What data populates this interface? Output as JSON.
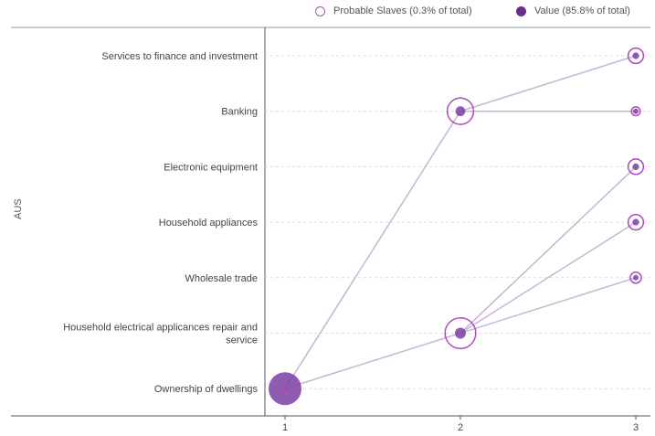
{
  "legend": {
    "probable_slaves": "Probable Slaves (0.3% of total)",
    "value": "Value (85.8% of total)"
  },
  "colors": {
    "value_fill": "#7b3fa3",
    "slaves_ring": "#b04ac0",
    "link_line": "#c9b3d6",
    "grid": "#dcdcdc",
    "axis": "#555555"
  },
  "chart_data": {
    "type": "scatter",
    "ylabel": "AUS",
    "x_ticks": [
      1,
      2,
      3
    ],
    "categories": [
      "Services to finance and investment",
      "Banking",
      "Electronic equipment",
      "Household appliances",
      "Wholesale trade",
      "Household electrical applicances repair and service",
      "Ownership of dwellings"
    ],
    "nodes": [
      {
        "x": 1,
        "category": "Ownership of dwellings",
        "value_size": 3.0,
        "slaves_size": 0.6
      },
      {
        "x": 2,
        "category": "Banking",
        "value_size": 0.9,
        "slaves_size": 2.4
      },
      {
        "x": 2,
        "category": "Household electrical applicances repair and service",
        "value_size": 1.0,
        "slaves_size": 2.8
      },
      {
        "x": 3,
        "category": "Services to finance and investment",
        "value_size": 0.6,
        "slaves_size": 1.4
      },
      {
        "x": 3,
        "category": "Banking",
        "value_size": 0.5,
        "slaves_size": 0.8
      },
      {
        "x": 3,
        "category": "Electronic equipment",
        "value_size": 0.6,
        "slaves_size": 1.4
      },
      {
        "x": 3,
        "category": "Household appliances",
        "value_size": 0.6,
        "slaves_size": 1.4
      },
      {
        "x": 3,
        "category": "Wholesale trade",
        "value_size": 0.5,
        "slaves_size": 1.0
      }
    ],
    "links": [
      {
        "from": [
          1,
          "Ownership of dwellings"
        ],
        "to": [
          2,
          "Banking"
        ]
      },
      {
        "from": [
          1,
          "Ownership of dwellings"
        ],
        "to": [
          2,
          "Household electrical applicances repair and service"
        ]
      },
      {
        "from": [
          2,
          "Banking"
        ],
        "to": [
          3,
          "Services to finance and investment"
        ]
      },
      {
        "from": [
          2,
          "Banking"
        ],
        "to": [
          3,
          "Banking"
        ]
      },
      {
        "from": [
          2,
          "Household electrical applicances repair and service"
        ],
        "to": [
          3,
          "Electronic equipment"
        ]
      },
      {
        "from": [
          2,
          "Household electrical applicances repair and service"
        ],
        "to": [
          3,
          "Household appliances"
        ]
      },
      {
        "from": [
          2,
          "Household electrical applicances repair and service"
        ],
        "to": [
          3,
          "Wholesale trade"
        ]
      }
    ]
  }
}
